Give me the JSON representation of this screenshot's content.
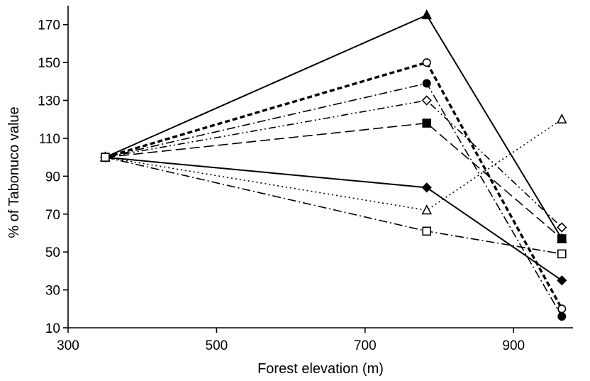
{
  "chart_data": {
    "type": "line",
    "xlabel": "Forest elevation (m)",
    "ylabel": "% of Tabonuco value",
    "xlim": [
      300,
      980
    ],
    "ylim": [
      10,
      180
    ],
    "xticks": [
      300,
      500,
      700,
      900
    ],
    "yticks": [
      10,
      30,
      50,
      70,
      90,
      110,
      130,
      150,
      170
    ],
    "grid": false,
    "legend": "none",
    "series": [
      {
        "marker": "triangle-filled",
        "line": "solid",
        "x": [
          350,
          783,
          965
        ],
        "y": [
          100,
          175,
          57
        ]
      },
      {
        "marker": "circle-open",
        "line": "dash-bold",
        "x": [
          350,
          783,
          965
        ],
        "y": [
          100,
          150,
          20
        ]
      },
      {
        "marker": "circle-filled",
        "line": "dash-dot",
        "x": [
          350,
          783,
          965
        ],
        "y": [
          100,
          139,
          16
        ]
      },
      {
        "marker": "diamond-open",
        "line": "dash-dot-dot",
        "x": [
          350,
          783,
          965
        ],
        "y": [
          100,
          130,
          63
        ]
      },
      {
        "marker": "square-filled",
        "line": "long-dash",
        "x": [
          350,
          783,
          965
        ],
        "y": [
          100,
          118,
          57
        ]
      },
      {
        "marker": "diamond-filled",
        "line": "solid",
        "x": [
          350,
          783,
          965
        ],
        "y": [
          100,
          84,
          35
        ]
      },
      {
        "marker": "triangle-open",
        "line": "dotted",
        "x": [
          350,
          783,
          965
        ],
        "y": [
          100,
          72,
          120
        ]
      },
      {
        "marker": "square-open",
        "line": "dash-dot",
        "x": [
          350,
          783,
          965
        ],
        "y": [
          100,
          61,
          49
        ]
      }
    ]
  }
}
